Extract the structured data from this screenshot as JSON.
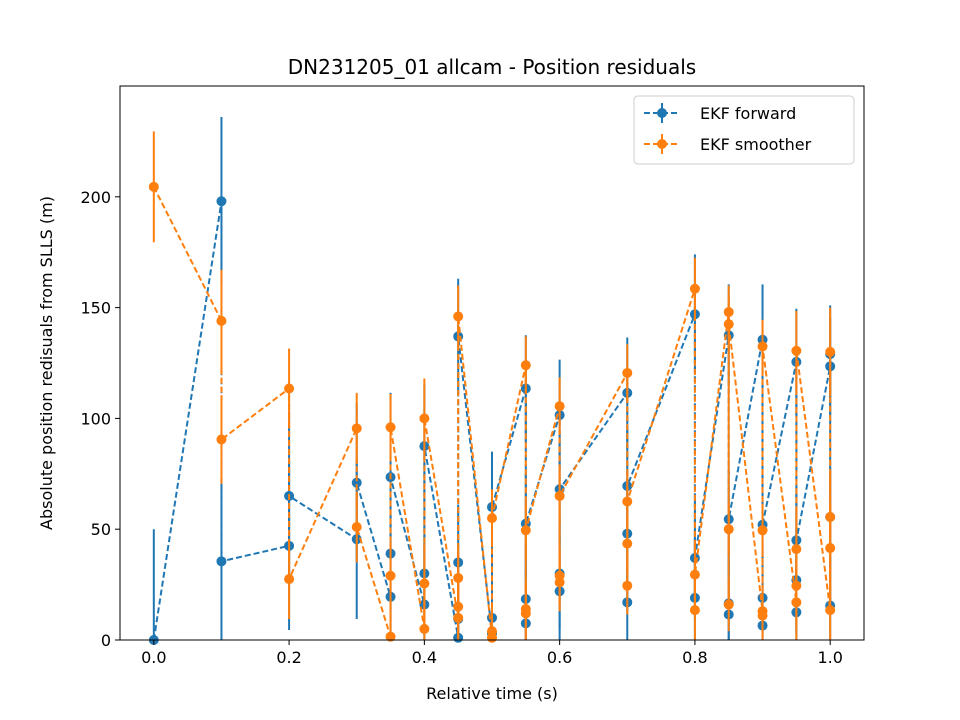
{
  "chart_data": {
    "type": "scatter",
    "title": "DN231205_01 allcam - Position residuals",
    "xlabel": "Relative time (s)",
    "ylabel": "Absolute position redisuals from SLLS (m)",
    "xlim": [
      -0.05,
      1.05
    ],
    "ylim": [
      0,
      250
    ],
    "xticks": [
      0.0,
      0.2,
      0.4,
      0.6,
      0.8,
      1.0
    ],
    "xtick_labels": [
      "0.0",
      "0.2",
      "0.4",
      "0.6",
      "0.8",
      "1.0"
    ],
    "yticks": [
      0,
      50,
      100,
      150,
      200
    ],
    "ytick_labels": [
      "0",
      "50",
      "100",
      "150",
      "200"
    ],
    "grid": false,
    "legend_position": "top-right",
    "series": [
      {
        "name": "EKF forward",
        "color": "#1f77b4",
        "x": [
          0.0,
          0.1,
          0.1,
          0.2,
          0.2,
          0.3,
          0.3,
          0.35,
          0.35,
          0.35,
          0.4,
          0.4,
          0.4,
          0.45,
          0.45,
          0.45,
          0.45,
          0.5,
          0.5,
          0.5,
          0.55,
          0.55,
          0.55,
          0.55,
          0.6,
          0.6,
          0.6,
          0.6,
          0.7,
          0.7,
          0.7,
          0.7,
          0.8,
          0.8,
          0.8,
          0.85,
          0.85,
          0.85,
          0.85,
          0.9,
          0.9,
          0.9,
          0.9,
          0.95,
          0.95,
          0.95,
          0.95,
          1.0,
          1.0,
          1.0,
          1.0
        ],
        "y": [
          0,
          198,
          35.5,
          42.5,
          65,
          45.5,
          71,
          19.5,
          39,
          73.5,
          16,
          30,
          87.5,
          1,
          9.5,
          35,
          137,
          3,
          10,
          60,
          113.5,
          7.5,
          18.5,
          52.5,
          101.5,
          22,
          30,
          68,
          111.5,
          17,
          48,
          69.5,
          147,
          19,
          37,
          137.5,
          11.5,
          16.5,
          54.5,
          135.5,
          6.5,
          19,
          52,
          125.5,
          12.5,
          27,
          45,
          123.5,
          15.5,
          55.5,
          129
        ],
        "err": [
          50,
          38,
          38,
          38,
          38,
          36,
          36,
          38,
          38,
          38,
          28,
          28,
          28,
          26,
          26,
          26,
          26,
          25,
          25,
          25,
          24,
          24,
          24,
          24,
          25,
          25,
          25,
          25,
          25,
          25,
          25,
          25,
          27,
          27,
          27,
          23,
          23,
          23,
          23,
          25,
          25,
          25,
          25,
          24,
          24,
          24,
          24,
          22,
          22,
          22,
          22
        ]
      },
      {
        "name": "EKF smoother",
        "color": "#ff7f0e",
        "x": [
          0.0,
          0.1,
          0.1,
          0.2,
          0.2,
          0.3,
          0.3,
          0.35,
          0.35,
          0.35,
          0.4,
          0.4,
          0.4,
          0.45,
          0.45,
          0.45,
          0.45,
          0.5,
          0.5,
          0.5,
          0.55,
          0.55,
          0.55,
          0.55,
          0.6,
          0.6,
          0.6,
          0.6,
          0.7,
          0.7,
          0.7,
          0.7,
          0.8,
          0.8,
          0.8,
          0.85,
          0.85,
          0.85,
          0.85,
          0.9,
          0.9,
          0.9,
          0.9,
          0.95,
          0.95,
          0.95,
          0.95,
          1.0,
          1.0,
          1.0,
          1.0
        ],
        "y": [
          204.5,
          144,
          90.5,
          113.5,
          27.5,
          95.5,
          51,
          1.5,
          29,
          96,
          5,
          25.5,
          100,
          10,
          15,
          28,
          146,
          1,
          4,
          55,
          124,
          12,
          14,
          49.5,
          105.5,
          26,
          29,
          65,
          120.5,
          24.5,
          43.5,
          62.5,
          158.5,
          13.5,
          29.5,
          148,
          16,
          50,
          142.5,
          13,
          49.5,
          11,
          132.5,
          17,
          24.5,
          41,
          130.5,
          13.5,
          41.5,
          55.5,
          130
        ],
        "err": [
          25,
          23,
          20,
          18,
          18,
          16,
          16,
          15,
          15,
          15,
          18,
          18,
          18,
          14,
          14,
          14,
          14,
          13,
          13,
          13,
          13,
          13,
          13,
          13,
          13,
          13,
          13,
          13,
          13,
          13,
          13,
          13,
          14,
          14,
          14,
          12,
          12,
          12,
          12,
          12,
          12,
          12,
          12,
          18,
          18,
          18,
          18,
          20,
          20,
          20,
          20
        ]
      }
    ]
  }
}
